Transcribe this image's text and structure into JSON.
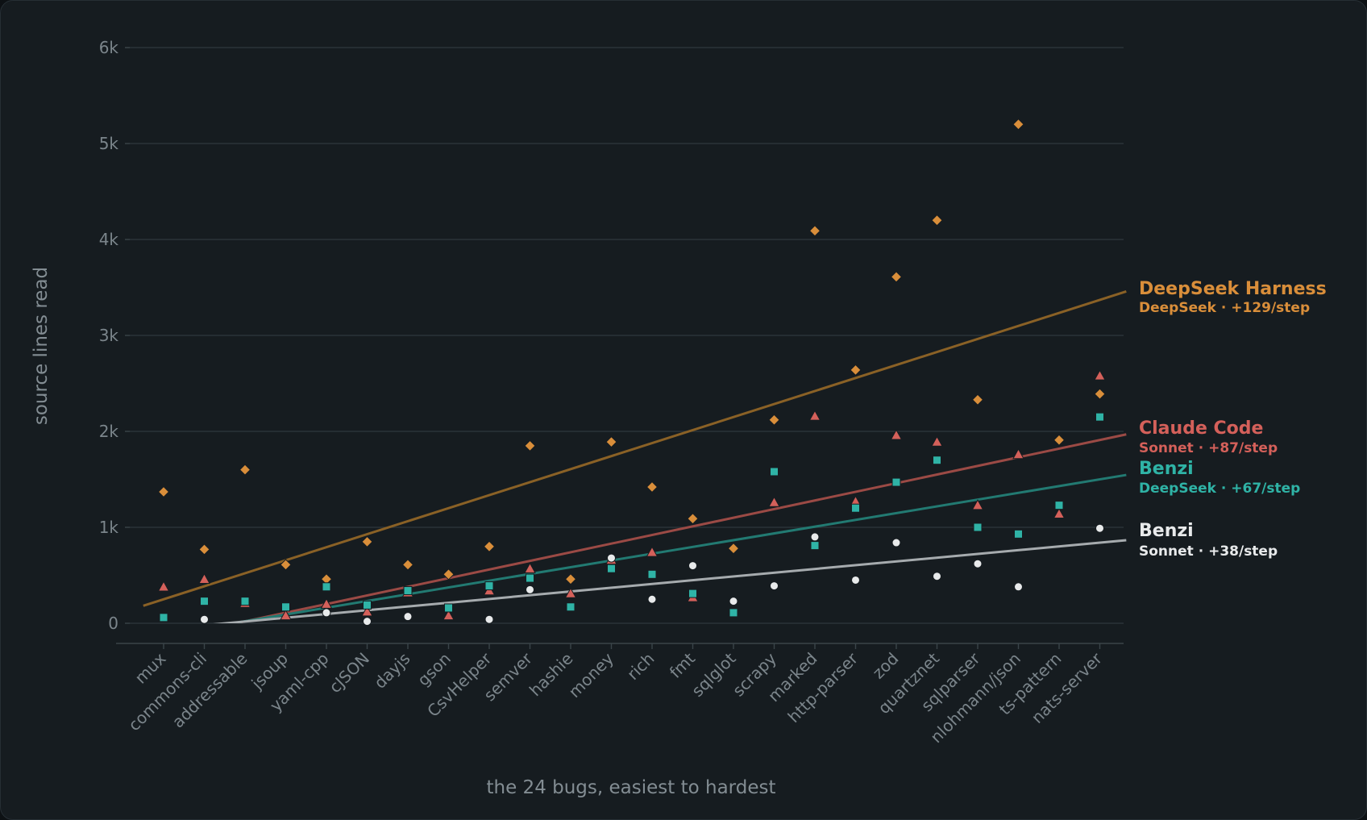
{
  "chart_data": {
    "type": "scatter",
    "xlabel": "the 24 bugs, easiest to hardest",
    "ylabel": "source lines read",
    "ylim": [
      0,
      6000
    ],
    "yticks": [
      {
        "value": 0,
        "label": "0"
      },
      {
        "value": 1000,
        "label": "1k"
      },
      {
        "value": 2000,
        "label": "2k"
      },
      {
        "value": 3000,
        "label": "3k"
      },
      {
        "value": 4000,
        "label": "4k"
      },
      {
        "value": 5000,
        "label": "5k"
      },
      {
        "value": 6000,
        "label": "6k"
      }
    ],
    "grid": true,
    "categories": [
      "mux",
      "commons-cli",
      "addressable",
      "jsoup",
      "yaml-cpp",
      "cJSON",
      "dayjs",
      "gson",
      "CsvHelper",
      "semver",
      "hashie",
      "money",
      "rich",
      "fmt",
      "sqlglot",
      "scrapy",
      "marked",
      "http-parser",
      "zod",
      "quartznet",
      "sqlparser",
      "nlohmann/json",
      "ts-pattern",
      "nats-server"
    ],
    "series": [
      {
        "name": "DeepSeek Harness",
        "sublabel": "DeepSeek · +129/step",
        "color": "#d98e3a",
        "line_color": "#8a6126",
        "marker": "diamond",
        "values": [
          1370,
          770,
          1600,
          610,
          460,
          850,
          610,
          510,
          800,
          1850,
          460,
          1890,
          1420,
          1090,
          780,
          2120,
          4090,
          2640,
          3610,
          4200,
          2330,
          5200,
          1910,
          2390
        ],
        "trend": [
          250,
          3370
        ]
      },
      {
        "name": "Claude Code",
        "sublabel": "Sonnet · +87/step",
        "color": "#d4605a",
        "line_color": "#9b4a45",
        "marker": "triangle",
        "values": [
          380,
          460,
          210,
          80,
          200,
          120,
          320,
          80,
          340,
          570,
          310,
          660,
          740,
          270,
          null,
          1260,
          2160,
          1270,
          1960,
          1890,
          1230,
          1760,
          1140,
          2580
        ],
        "trend": [
          -160,
          1910
        ]
      },
      {
        "name": "Benzi",
        "sublabel": "DeepSeek · +67/step",
        "color": "#2fb3a6",
        "line_color": "#227a72",
        "marker": "square",
        "values": [
          60,
          230,
          230,
          170,
          380,
          190,
          340,
          160,
          390,
          470,
          170,
          570,
          510,
          310,
          110,
          1580,
          810,
          1200,
          1470,
          1700,
          1000,
          930,
          1230,
          2150
        ],
        "trend": [
          -120,
          1500
        ]
      },
      {
        "name": "Benzi",
        "sublabel": "Sonnet · +38/step",
        "color": "#e8eaeb",
        "line_color": "#a6abae",
        "marker": "circle",
        "values": [
          null,
          40,
          null,
          null,
          110,
          20,
          70,
          null,
          40,
          350,
          null,
          680,
          250,
          600,
          230,
          390,
          900,
          450,
          840,
          490,
          620,
          380,
          null,
          990
        ],
        "trend": [
          -60,
          840
        ]
      }
    ]
  }
}
